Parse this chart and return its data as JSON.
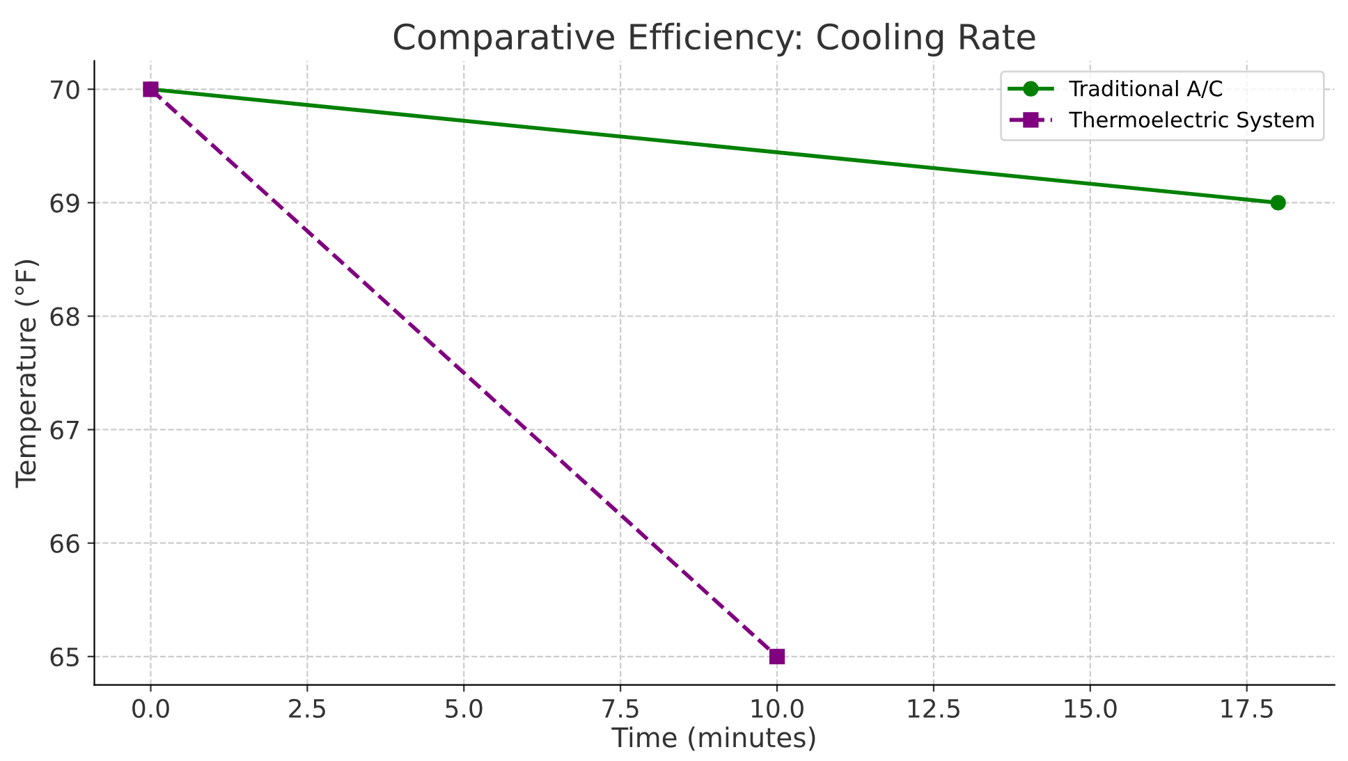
{
  "chart_data": {
    "type": "line",
    "title": "Comparative Efficiency: Cooling Rate",
    "xlabel": "Time (minutes)",
    "ylabel": "Temperature (°F)",
    "series": [
      {
        "name": "Traditional A/C",
        "color": "#008000",
        "x": [
          0,
          18
        ],
        "values": [
          70,
          69
        ],
        "marker": "circle",
        "line_style": "solid"
      },
      {
        "name": "Thermoelectric System",
        "color": "#800080",
        "x": [
          0,
          10
        ],
        "values": [
          70,
          65
        ],
        "marker": "square",
        "line_style": "dashed"
      }
    ],
    "xlim": [
      -0.9,
      18.9
    ],
    "ylim": [
      64.75,
      70.25
    ],
    "xticks": [
      {
        "value": 0,
        "label": "0.0"
      },
      {
        "value": 2.5,
        "label": "2.5"
      },
      {
        "value": 5,
        "label": "5.0"
      },
      {
        "value": 7.5,
        "label": "7.5"
      },
      {
        "value": 10,
        "label": "10.0"
      },
      {
        "value": 12.5,
        "label": "12.5"
      },
      {
        "value": 15,
        "label": "15.0"
      },
      {
        "value": 17.5,
        "label": "17.5"
      }
    ],
    "yticks": [
      65,
      66,
      67,
      68,
      69,
      70
    ],
    "grid": true,
    "legend": "top right"
  }
}
